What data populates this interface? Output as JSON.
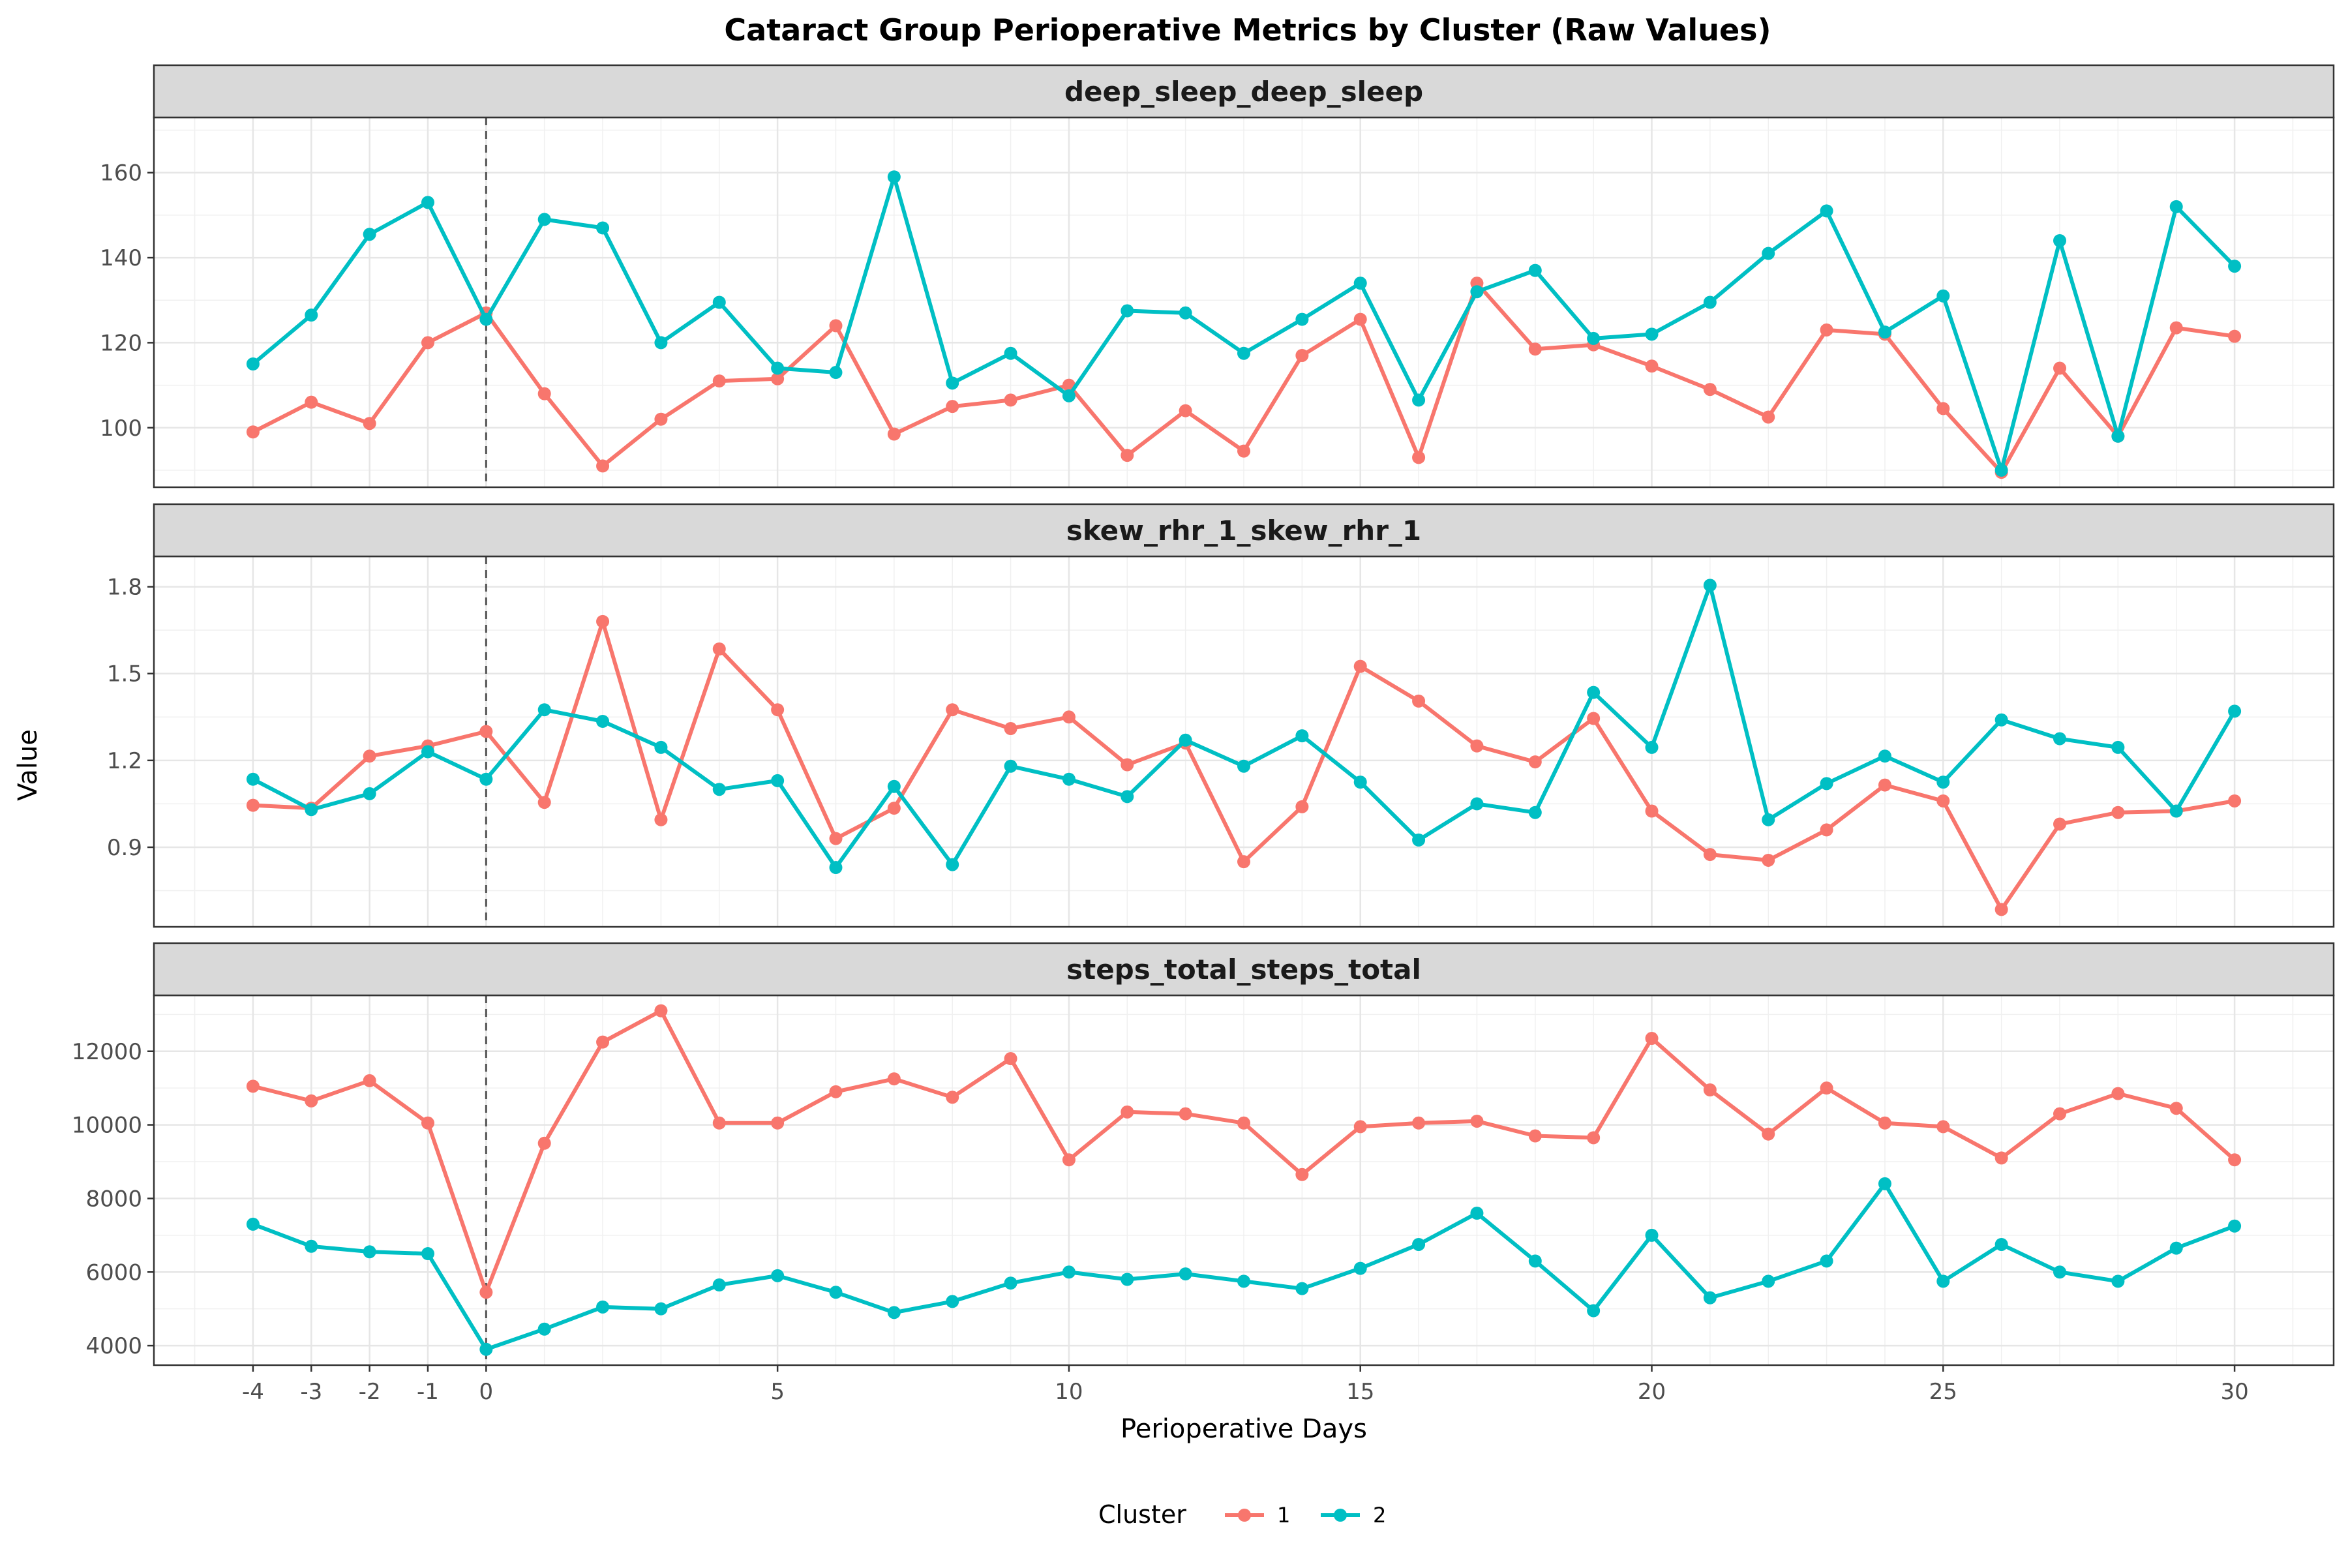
{
  "chart_data": {
    "type": "line",
    "title": "Cataract Group Perioperative Metrics by Cluster (Raw Values)",
    "xlabel": "Perioperative Days",
    "ylabel": "Value",
    "legend": {
      "title": "Cluster",
      "position": "bottom",
      "entries": [
        "1",
        "2"
      ]
    },
    "colors": {
      "1": "#F8766D",
      "2": "#00BFC4"
    },
    "grid": true,
    "reference_line_x": 0,
    "x": [
      -4,
      -3,
      -2,
      -1,
      0,
      1,
      2,
      3,
      4,
      5,
      6,
      7,
      8,
      9,
      10,
      11,
      12,
      13,
      14,
      15,
      16,
      17,
      18,
      19,
      20,
      21,
      22,
      23,
      24,
      25,
      26,
      27,
      28,
      29,
      30
    ],
    "x_ticks": [
      -4,
      -3,
      -2,
      -1,
      0,
      5,
      10,
      15,
      20,
      25,
      30
    ],
    "x_tick_labels": [
      "-4",
      "-3",
      "-2",
      "-1",
      "0",
      "5",
      "10",
      "15",
      "20",
      "25",
      "30"
    ],
    "xlim": [
      -5.7,
      31.7
    ],
    "facets": [
      {
        "strip": "deep_sleep_deep_sleep",
        "ylim": [
          86,
          173
        ],
        "y_ticks": [
          100,
          120,
          140,
          160
        ],
        "y_tick_labels": [
          "100",
          "120",
          "140",
          "160"
        ],
        "series": [
          {
            "name": "1",
            "values": [
              99,
              106,
              101,
              120,
              127,
              108,
              91,
              102,
              111,
              111.5,
              124,
              98.5,
              105,
              106.5,
              110,
              93.5,
              104,
              94.5,
              117,
              125.5,
              93,
              134,
              118.5,
              119.5,
              114.5,
              109,
              102.5,
              123,
              122,
              104.5,
              89.5,
              114,
              98,
              123.5,
              121.5
            ]
          },
          {
            "name": "2",
            "values": [
              115,
              126.5,
              145.5,
              153,
              125.5,
              149,
              147,
              120,
              129.5,
              114,
              113,
              159,
              110.5,
              117.5,
              107.5,
              127.5,
              127,
              117.5,
              125.5,
              134,
              106.5,
              132,
              137,
              121,
              122,
              129.5,
              141,
              151,
              122.5,
              131,
              90,
              144,
              98,
              152,
              138
            ]
          }
        ]
      },
      {
        "strip": "skew_rhr_1_skew_rhr_1",
        "ylim": [
          0.625,
          1.905
        ],
        "y_ticks": [
          0.9,
          1.2,
          1.5,
          1.8
        ],
        "y_tick_labels": [
          "0.9",
          "1.2",
          "1.5",
          "1.8"
        ],
        "series": [
          {
            "name": "1",
            "values": [
              1.045,
              1.035,
              1.215,
              1.25,
              1.3,
              1.055,
              1.68,
              0.995,
              1.585,
              1.375,
              0.93,
              1.035,
              1.375,
              1.31,
              1.35,
              1.185,
              1.26,
              0.85,
              1.04,
              1.525,
              1.405,
              1.25,
              1.195,
              1.345,
              1.025,
              0.875,
              0.855,
              0.96,
              1.115,
              1.06,
              0.685,
              0.98,
              1.02,
              1.025,
              1.06
            ]
          },
          {
            "name": "2",
            "values": [
              1.135,
              1.03,
              1.085,
              1.23,
              1.135,
              1.375,
              1.335,
              1.245,
              1.1,
              1.13,
              0.83,
              1.11,
              0.84,
              1.18,
              1.135,
              1.075,
              1.27,
              1.18,
              1.285,
              1.125,
              0.925,
              1.05,
              1.02,
              1.435,
              1.245,
              1.805,
              0.995,
              1.12,
              1.215,
              1.125,
              1.34,
              1.275,
              1.245,
              1.025,
              1.37
            ]
          }
        ]
      },
      {
        "strip": "steps_total_steps_total",
        "ylim": [
          3470,
          13520
        ],
        "y_ticks": [
          4000,
          6000,
          8000,
          10000,
          12000
        ],
        "y_tick_labels": [
          "4000",
          "6000",
          "8000",
          "10000",
          "12000"
        ],
        "series": [
          {
            "name": "1",
            "values": [
              11050,
              10650,
              11200,
              10050,
              5450,
              9500,
              12250,
              13100,
              10050,
              10050,
              10900,
              11250,
              10750,
              11800,
              9050,
              10350,
              10300,
              10050,
              8650,
              9950,
              10050,
              10100,
              9700,
              9650,
              12350,
              10950,
              9750,
              11000,
              10050,
              9950,
              9100,
              10300,
              10850,
              10450,
              9050
            ]
          },
          {
            "name": "2",
            "values": [
              7300,
              6700,
              6550,
              6500,
              3900,
              4450,
              5050,
              5000,
              5650,
              5900,
              5450,
              4900,
              5200,
              5700,
              6000,
              5800,
              5950,
              5750,
              5550,
              6100,
              6750,
              7600,
              6300,
              4950,
              7000,
              5300,
              5750,
              6300,
              8400,
              5750,
              6750,
              6000,
              5750,
              6650,
              7250
            ]
          }
        ]
      }
    ]
  }
}
